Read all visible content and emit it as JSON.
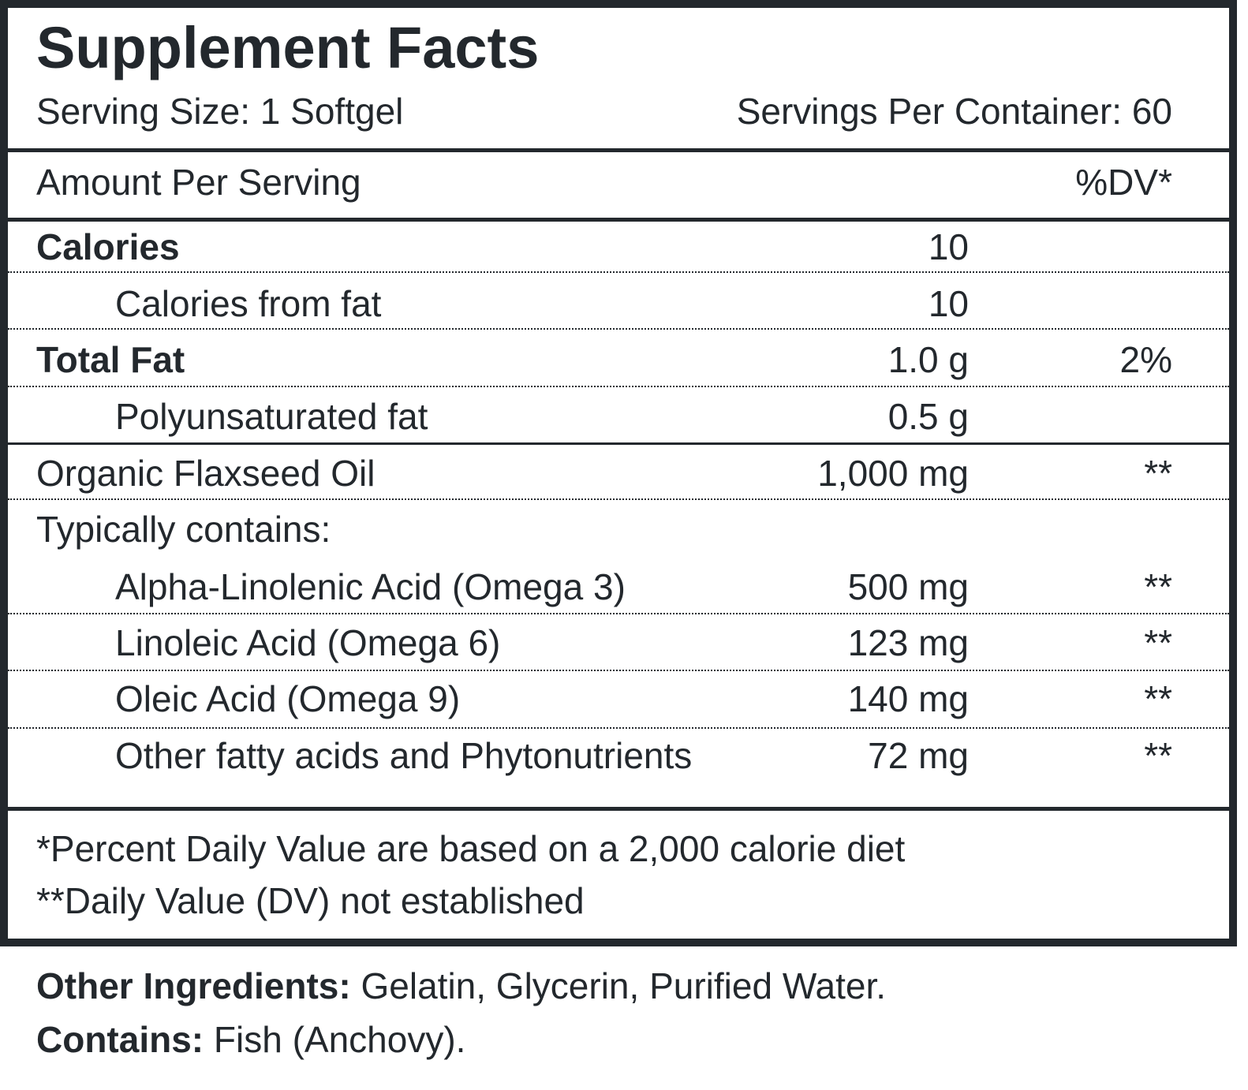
{
  "header": {
    "title": "Supplement Facts",
    "serving_size": "Serving Size: 1 Softgel",
    "servings_per_container": "Servings Per Container: 60"
  },
  "table": {
    "amount_header": "Amount Per Serving",
    "dv_header": "%DV*",
    "rows": [
      {
        "name": "Calories",
        "amount": "10"
      },
      {
        "name": "Calories from fat",
        "amount": "10"
      },
      {
        "name": "Total Fat",
        "amount": "1.0 g",
        "dv": "2%"
      },
      {
        "name": "Polyunsaturated fat",
        "amount": "0.5 g"
      },
      {
        "name": "Organic Flaxseed Oil",
        "amount": "1,000 mg",
        "dv": "**"
      },
      {
        "name": "Typically contains:"
      },
      {
        "name": "Alpha-Linolenic Acid (Omega 3)",
        "amount": "500 mg",
        "dv": "**"
      },
      {
        "name": "Linoleic Acid (Omega 6)",
        "amount": "123 mg",
        "dv": "**"
      },
      {
        "name": "Oleic Acid (Omega 9)",
        "amount": "140 mg",
        "dv": "**"
      },
      {
        "name": "Other fatty acids and Phytonutrients",
        "amount": "72 mg",
        "dv": "**"
      }
    ]
  },
  "footnotes": [
    "*Percent Daily Value are based on a 2,000 calorie diet",
    "**Daily Value (DV) not established"
  ],
  "other_ingredients": {
    "label": "Other Ingredients:",
    "text": "Gelatin, Glycerin, Purified Water."
  },
  "contains": {
    "label": "Contains:",
    "text": "Fish (Anchovy)."
  }
}
